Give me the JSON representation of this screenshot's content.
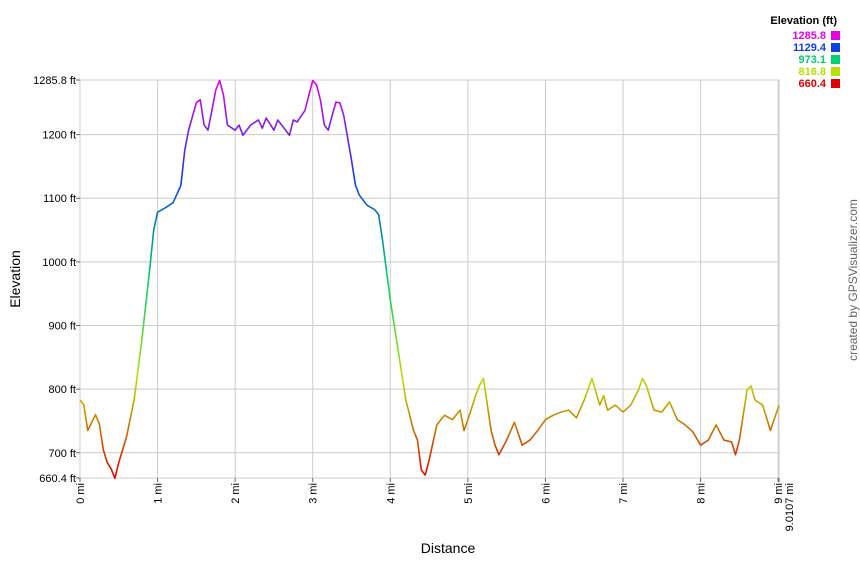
{
  "chart_data": {
    "type": "line",
    "x_label": "Distance",
    "y_label": "Elevation",
    "legend_title": "Elevation (ft)",
    "credit": "created by GPSVisualizer.com",
    "grid": true,
    "legend_position": "top-right",
    "color_scale": [
      {
        "value": 1285.8,
        "color": "#e600e6"
      },
      {
        "value": 1129.4,
        "color": "#1040e0"
      },
      {
        "value": 973.1,
        "color": "#00d070"
      },
      {
        "value": 816.8,
        "color": "#b8e000"
      },
      {
        "value": 660.4,
        "color": "#e00000"
      }
    ],
    "xlim": [
      0,
      9.0107
    ],
    "ylim": [
      660.4,
      1285.8
    ],
    "xticks": [
      {
        "value": 0,
        "label": "0 mi"
      },
      {
        "value": 1,
        "label": "1 mi"
      },
      {
        "value": 2,
        "label": "2 mi"
      },
      {
        "value": 3,
        "label": "3 mi"
      },
      {
        "value": 4,
        "label": "4 mi"
      },
      {
        "value": 5,
        "label": "5 mi"
      },
      {
        "value": 6,
        "label": "6 mi"
      },
      {
        "value": 7,
        "label": "7 mi"
      },
      {
        "value": 8,
        "label": "8 mi"
      },
      {
        "value": 9,
        "label": "9 mi"
      },
      {
        "value": 9.0107,
        "label": "9.0107 mi"
      }
    ],
    "yticks": [
      {
        "value": 660.4,
        "label": "660.4 ft"
      },
      {
        "value": 700,
        "label": "700 ft"
      },
      {
        "value": 800,
        "label": "800 ft"
      },
      {
        "value": 900,
        "label": "900 ft"
      },
      {
        "value": 1000,
        "label": "1000 ft"
      },
      {
        "value": 1100,
        "label": "1100 ft"
      },
      {
        "value": 1200,
        "label": "1200 ft"
      },
      {
        "value": 1285.8,
        "label": "1285.8 ft"
      }
    ],
    "x": [
      0,
      0.05,
      0.1,
      0.2,
      0.25,
      0.3,
      0.35,
      0.4,
      0.45,
      0.5,
      0.6,
      0.7,
      0.8,
      0.9,
      0.95,
      1.0,
      1.1,
      1.2,
      1.3,
      1.35,
      1.4,
      1.5,
      1.55,
      1.6,
      1.65,
      1.7,
      1.75,
      1.8,
      1.85,
      1.9,
      2.0,
      2.05,
      2.1,
      2.2,
      2.3,
      2.35,
      2.4,
      2.5,
      2.55,
      2.6,
      2.7,
      2.75,
      2.8,
      2.9,
      2.95,
      3.0,
      3.05,
      3.1,
      3.15,
      3.2,
      3.25,
      3.3,
      3.35,
      3.4,
      3.5,
      3.55,
      3.6,
      3.7,
      3.8,
      3.85,
      3.9,
      4.0,
      4.1,
      4.2,
      4.3,
      4.35,
      4.4,
      4.45,
      4.5,
      4.6,
      4.7,
      4.8,
      4.9,
      4.95,
      5.0,
      5.1,
      5.15,
      5.2,
      5.3,
      5.35,
      5.4,
      5.5,
      5.6,
      5.7,
      5.8,
      5.9,
      6.0,
      6.1,
      6.2,
      6.3,
      6.4,
      6.5,
      6.6,
      6.7,
      6.75,
      6.8,
      6.9,
      7.0,
      7.1,
      7.2,
      7.25,
      7.3,
      7.4,
      7.5,
      7.6,
      7.7,
      7.8,
      7.9,
      8.0,
      8.1,
      8.2,
      8.3,
      8.4,
      8.45,
      8.5,
      8.6,
      8.65,
      8.7,
      8.8,
      8.9,
      9.0107
    ],
    "values": [
      783,
      775,
      735,
      760,
      745,
      705,
      685,
      675,
      660,
      685,
      725,
      785,
      880,
      990,
      1050,
      1078,
      1085,
      1093,
      1120,
      1175,
      1207,
      1250,
      1255,
      1215,
      1207,
      1238,
      1270,
      1285,
      1262,
      1215,
      1207,
      1215,
      1199,
      1215,
      1223,
      1210,
      1226,
      1207,
      1223,
      1215,
      1199,
      1223,
      1220,
      1238,
      1262,
      1285,
      1278,
      1254,
      1215,
      1207,
      1230,
      1251,
      1250,
      1230,
      1160,
      1121,
      1105,
      1089,
      1082,
      1074,
      1034,
      940,
      862,
      783,
      735,
      720,
      673,
      665,
      688,
      744,
      759,
      752,
      767,
      735,
      752,
      790,
      806,
      817,
      735,
      712,
      697,
      720,
      748,
      712,
      720,
      735,
      752,
      759,
      764,
      767,
      755,
      783,
      817,
      775,
      790,
      767,
      775,
      764,
      775,
      799,
      817,
      806,
      767,
      764,
      780,
      752,
      744,
      733,
      712,
      720,
      744,
      720,
      717,
      697,
      720,
      799,
      805,
      783,
      775,
      735,
      775
    ]
  }
}
